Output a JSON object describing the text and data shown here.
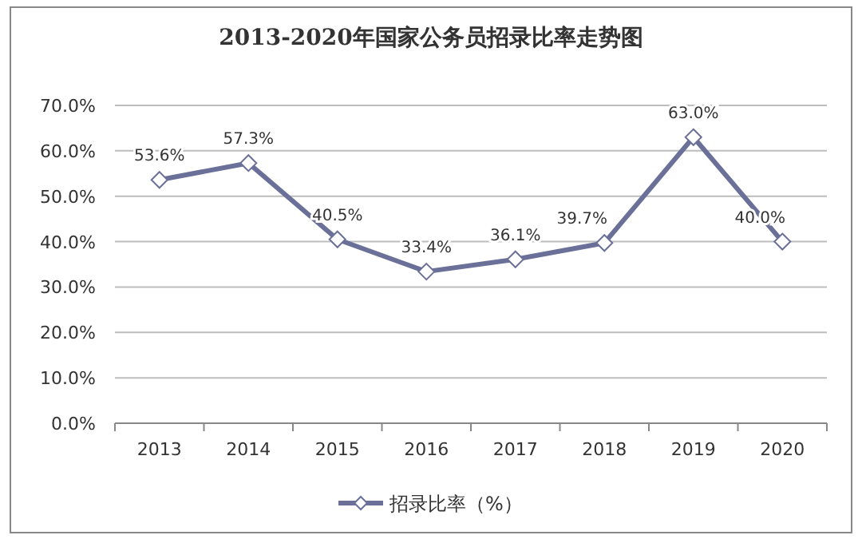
{
  "chart_data": {
    "type": "line",
    "title": "2013-2020年国家公务员招录比率走势图",
    "categories": [
      "2013",
      "2014",
      "2015",
      "2016",
      "2017",
      "2018",
      "2019",
      "2020"
    ],
    "series": [
      {
        "name": "招录比率（%）",
        "color": "#6b7098",
        "values": [
          53.6,
          57.3,
          40.5,
          33.4,
          36.1,
          39.7,
          63.0,
          40.0
        ],
        "value_labels": [
          "53.6%",
          "57.3%",
          "40.5%",
          "33.4%",
          "36.1%",
          "39.7%",
          "63.0%",
          "40.0%"
        ]
      }
    ],
    "ylim": [
      0,
      70
    ],
    "yticks": [
      {
        "value": 0,
        "label": "0.0%"
      },
      {
        "value": 10,
        "label": "10.0%"
      },
      {
        "value": 20,
        "label": "20.0%"
      },
      {
        "value": 30,
        "label": "30.0%"
      },
      {
        "value": 40,
        "label": "40.0%"
      },
      {
        "value": 50,
        "label": "50.0%"
      },
      {
        "value": 60,
        "label": "60.0%"
      },
      {
        "value": 70,
        "label": "70.0%"
      }
    ],
    "grid": "y",
    "legend": "bottom",
    "marker": "diamond",
    "line_style": "solid"
  }
}
